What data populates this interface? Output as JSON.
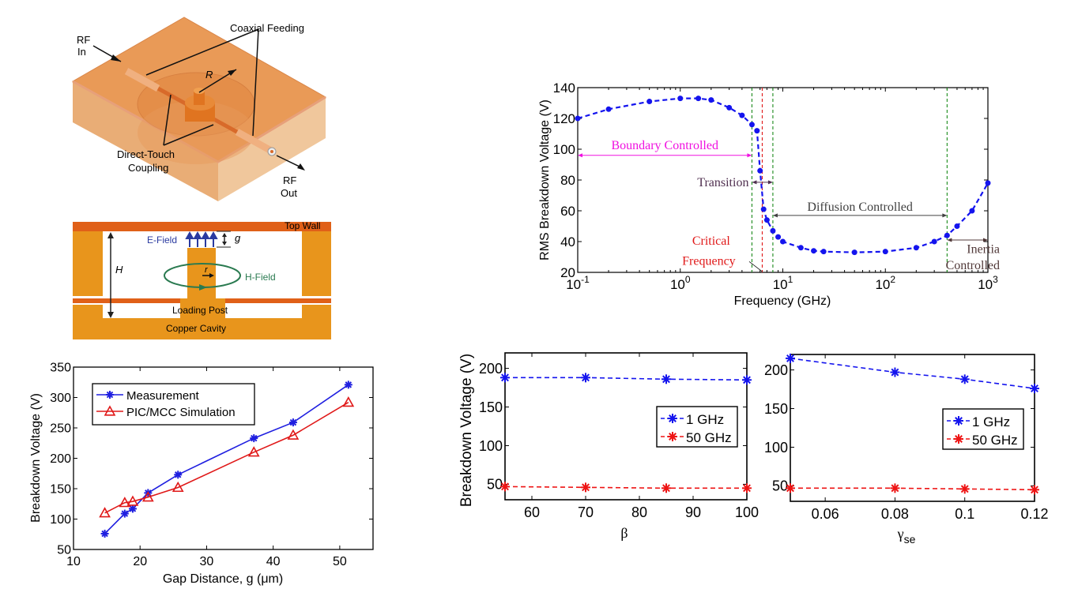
{
  "diagram_3d": {
    "labels": {
      "rf_in_1": "RF",
      "rf_in_2": "In",
      "coaxial_feeding": "Coaxial Feeding",
      "radius": "R",
      "direct_touch_1": "Direct-Touch",
      "direct_touch_2": "Coupling",
      "rf_out_1": "RF",
      "rf_out_2": "Out"
    },
    "colors": {
      "box_top": "#e8954f",
      "box_side": "#e9b98a",
      "box_front": "#f0c79c",
      "post": "#e07420"
    }
  },
  "diagram_section": {
    "labels": {
      "top_wall": "Top Wall",
      "e_field": "E-Field",
      "gap": "g",
      "height": "H",
      "post_radius": "r",
      "h_field": "H-Field",
      "loading_post": "Loading Post",
      "copper_cavity": "Copper Cavity"
    },
    "colors": {
      "wall": "#e06018",
      "cavity": "#e8951c",
      "e_field": "#2a3aa0",
      "h_field": "#2a7a50"
    }
  },
  "chart_data": [
    {
      "id": "gap",
      "type": "line",
      "title": "",
      "xlabel": "Gap Distance, g (μm)",
      "ylabel": "Breakdown Voltage (V)",
      "xlim": [
        10,
        55
      ],
      "ylim": [
        50,
        350
      ],
      "xticks": [
        10,
        20,
        30,
        40,
        50
      ],
      "yticks": [
        50,
        100,
        150,
        200,
        250,
        300,
        350
      ],
      "grid": false,
      "legend_position": "top-left",
      "series": [
        {
          "name": "Measurement",
          "color": "#1f1fe0",
          "marker": "star",
          "x": [
            14.7,
            17.7,
            18.9,
            21.2,
            25.7,
            37.1,
            43.0,
            51.3
          ],
          "y": [
            76,
            109,
            117,
            143,
            173,
            233,
            259,
            321
          ]
        },
        {
          "name": "PIC/MCC Simulation",
          "color": "#e01818",
          "marker": "triangle",
          "x": [
            14.7,
            17.7,
            18.9,
            21.2,
            25.7,
            37.1,
            43.0,
            51.3
          ],
          "y": [
            110,
            127,
            129,
            136,
            152,
            210,
            238,
            292
          ]
        }
      ]
    },
    {
      "id": "freq",
      "type": "line",
      "title": "",
      "xlabel": "Frequency (GHz)",
      "ylabel": "RMS Breakdown Voltage (V)",
      "xscale": "log",
      "xlim": [
        0.1,
        1000
      ],
      "ylim": [
        20,
        140
      ],
      "xticks": [
        0.1,
        1,
        10,
        100,
        1000
      ],
      "xtick_labels": [
        [
          "10",
          "-1"
        ],
        [
          "10",
          "0"
        ],
        [
          "10",
          "1"
        ],
        [
          "10",
          "2"
        ],
        [
          "10",
          "3"
        ]
      ],
      "yticks": [
        20,
        40,
        60,
        80,
        100,
        120,
        140
      ],
      "grid": false,
      "series": [
        {
          "name": "RMS breakdown",
          "color": "#1414ee",
          "marker": "dot",
          "x": [
            0.1,
            0.2,
            0.5,
            1.0,
            1.5,
            2.0,
            3.0,
            4.0,
            5.0,
            5.6,
            6.0,
            6.5,
            7.0,
            8.0,
            9.0,
            10,
            15,
            20,
            25,
            50,
            100,
            200,
            300,
            400,
            500,
            700,
            1000
          ],
          "y": [
            120,
            126,
            131,
            133,
            133,
            132,
            127,
            122,
            116,
            112,
            86,
            61,
            54,
            47,
            43,
            40,
            36,
            34,
            33.5,
            33,
            33.5,
            36,
            40,
            44,
            50,
            60,
            78
          ]
        }
      ],
      "vlines": [
        {
          "x": 5.0,
          "color": "#1a8a1a"
        },
        {
          "x": 6.3,
          "color": "#e01818"
        },
        {
          "x": 8.0,
          "color": "#1a8a1a"
        },
        {
          "x": 400,
          "color": "#1a8a1a"
        }
      ],
      "annotations": {
        "boundary": {
          "text": "Boundary Controlled",
          "color": "#f010e0",
          "from": 0.1,
          "to": 5.0,
          "y": 96
        },
        "transition": {
          "text": "Transition",
          "color": "#503050",
          "from": 5.0,
          "to": 8.0,
          "y": 78.5
        },
        "diffusion": {
          "text": "Diffusion Controlled",
          "color": "#404040",
          "from": 8.0,
          "to": 400,
          "y": 57
        },
        "inertia_1": {
          "text": "Inertia",
          "color": "#503838"
        },
        "inertia_2": {
          "text": "Controlled",
          "color": "#503838",
          "from": 400,
          "to": 1000,
          "y": 41
        },
        "critical_1": {
          "text": "Critical",
          "color": "#e01818"
        },
        "critical_2": {
          "text": "Frequency",
          "color": "#e01818"
        }
      }
    },
    {
      "id": "beta",
      "type": "line",
      "title": "",
      "xlabel": "β",
      "ylabel": "Breakdown Voltage (V)",
      "xlim": [
        55,
        100
      ],
      "ylim": [
        30,
        220
      ],
      "xticks": [
        60,
        70,
        80,
        90,
        100
      ],
      "yticks": [
        50,
        100,
        150,
        200
      ],
      "grid": false,
      "legend_position": "center-right",
      "series": [
        {
          "name": "1 GHz",
          "color": "#1414ee",
          "marker": "star",
          "x": [
            55,
            70,
            85,
            100
          ],
          "y": [
            188,
            188,
            186,
            185
          ]
        },
        {
          "name": "50 GHz",
          "color": "#ee1414",
          "marker": "star",
          "x": [
            55,
            70,
            85,
            100
          ],
          "y": [
            47,
            46,
            45,
            45
          ]
        }
      ]
    },
    {
      "id": "gamma",
      "type": "line",
      "title": "",
      "xlabel": "γ",
      "xlabel_sub": "se",
      "ylabel": "",
      "xlim": [
        0.05,
        0.12
      ],
      "ylim": [
        30,
        220
      ],
      "xticks": [
        0.06,
        0.08,
        0.1,
        0.12
      ],
      "xtick_labels": [
        "0.06",
        "0.08",
        "0.1",
        "0.12"
      ],
      "yticks": [
        50,
        100,
        150,
        200
      ],
      "grid": false,
      "legend_position": "center-right",
      "series": [
        {
          "name": "1 GHz",
          "color": "#1414ee",
          "marker": "star",
          "x": [
            0.05,
            0.08,
            0.1,
            0.12
          ],
          "y": [
            215,
            197,
            188,
            176
          ]
        },
        {
          "name": "50 GHz",
          "color": "#ee1414",
          "marker": "star",
          "x": [
            0.05,
            0.08,
            0.1,
            0.12
          ],
          "y": [
            47,
            47,
            46,
            45
          ]
        }
      ]
    }
  ]
}
